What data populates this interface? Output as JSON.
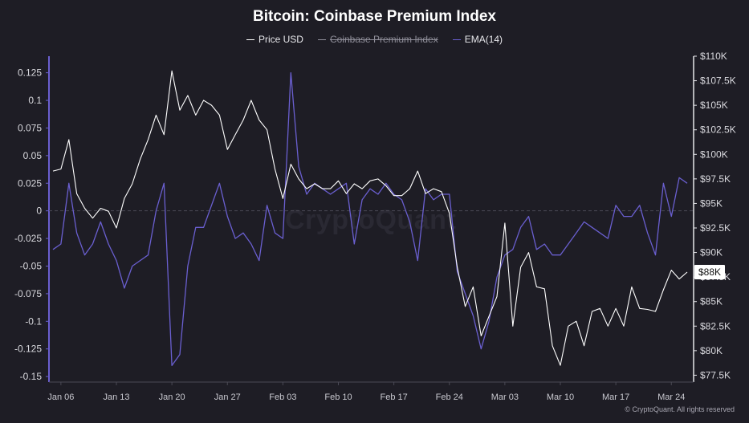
{
  "chart_data": {
    "type": "line",
    "title": "Bitcoin: Coinbase Premium Index",
    "legend": [
      {
        "name": "Price USD",
        "color": "#ffffff",
        "hidden": false
      },
      {
        "name": "Coinbase Premium Index",
        "color": "#8f8e99",
        "hidden": true
      },
      {
        "name": "EMA(14)",
        "color": "#6a5fd0",
        "hidden": false
      }
    ],
    "x_ticks": [
      "Jan 06",
      "Jan 13",
      "Jan 20",
      "Jan 27",
      "Feb 03",
      "Feb 10",
      "Feb 17",
      "Feb 24",
      "Mar 03",
      "Mar 10",
      "Mar 17",
      "Mar 24"
    ],
    "x_range": [
      "Jan 05",
      "Mar 26"
    ],
    "y_left": {
      "ticks": [
        "0.125",
        "0.1",
        "0.075",
        "0.05",
        "0.025",
        "0",
        "-0.025",
        "-0.05",
        "-0.075",
        "-0.1",
        "-0.125",
        "-0.15"
      ],
      "range": [
        -0.155,
        0.14
      ]
    },
    "y_right": {
      "ticks": [
        "$110K",
        "$107.5K",
        "$105K",
        "$102.5K",
        "$100K",
        "$97.5K",
        "$95K",
        "$92.5K",
        "$90K",
        "$87.5K",
        "$85K",
        "$82.5K",
        "$80K",
        "$77.5K"
      ],
      "range": [
        76800,
        110000
      ]
    },
    "price_label": "$88K",
    "series": [
      {
        "name": "Price USD",
        "axis": "right",
        "points": [
          [
            "Jan 05",
            98300
          ],
          [
            "Jan 06",
            98500
          ],
          [
            "Jan 07",
            101500
          ],
          [
            "Jan 08",
            96000
          ],
          [
            "Jan 09",
            94500
          ],
          [
            "Jan 10",
            93500
          ],
          [
            "Jan 11",
            94500
          ],
          [
            "Jan 12",
            94200
          ],
          [
            "Jan 13",
            92500
          ],
          [
            "Jan 14",
            95500
          ],
          [
            "Jan 15",
            97000
          ],
          [
            "Jan 16",
            99500
          ],
          [
            "Jan 17",
            101500
          ],
          [
            "Jan 18",
            104000
          ],
          [
            "Jan 19",
            102000
          ],
          [
            "Jan 20",
            108500
          ],
          [
            "Jan 21",
            104500
          ],
          [
            "Jan 22",
            106000
          ],
          [
            "Jan 23",
            104000
          ],
          [
            "Jan 24",
            105500
          ],
          [
            "Jan 25",
            105000
          ],
          [
            "Jan 26",
            104000
          ],
          [
            "Jan 27",
            100500
          ],
          [
            "Jan 28",
            102000
          ],
          [
            "Jan 29",
            103500
          ],
          [
            "Jan 30",
            105500
          ],
          [
            "Jan 31",
            103500
          ],
          [
            "Feb 01",
            102500
          ],
          [
            "Feb 02",
            98500
          ],
          [
            "Feb 03",
            95500
          ],
          [
            "Feb 04",
            99000
          ],
          [
            "Feb 05",
            97500
          ],
          [
            "Feb 06",
            96500
          ],
          [
            "Feb 07",
            97000
          ],
          [
            "Feb 08",
            96500
          ],
          [
            "Feb 09",
            96500
          ],
          [
            "Feb 10",
            97300
          ],
          [
            "Feb 11",
            96000
          ],
          [
            "Feb 12",
            97000
          ],
          [
            "Feb 13",
            96500
          ],
          [
            "Feb 14",
            97300
          ],
          [
            "Feb 15",
            97500
          ],
          [
            "Feb 16",
            96800
          ],
          [
            "Feb 17",
            95800
          ],
          [
            "Feb 18",
            95800
          ],
          [
            "Feb 19",
            96500
          ],
          [
            "Feb 20",
            98300
          ],
          [
            "Feb 21",
            96000
          ],
          [
            "Feb 22",
            96500
          ],
          [
            "Feb 23",
            96200
          ],
          [
            "Feb 24",
            94000
          ],
          [
            "Feb 25",
            88500
          ],
          [
            "Feb 26",
            84500
          ],
          [
            "Feb 27",
            86500
          ],
          [
            "Feb 28",
            81500
          ],
          [
            "Mar 01",
            83500
          ],
          [
            "Mar 02",
            85500
          ],
          [
            "Mar 03",
            93000
          ],
          [
            "Mar 04",
            82500
          ],
          [
            "Mar 05",
            88500
          ],
          [
            "Mar 06",
            90000
          ],
          [
            "Mar 07",
            86500
          ],
          [
            "Mar 08",
            86300
          ],
          [
            "Mar 09",
            80500
          ],
          [
            "Mar 10",
            78500
          ],
          [
            "Mar 11",
            82500
          ],
          [
            "Mar 12",
            83000
          ],
          [
            "Mar 13",
            80500
          ],
          [
            "Mar 14",
            84000
          ],
          [
            "Mar 15",
            84300
          ],
          [
            "Mar 16",
            82500
          ],
          [
            "Mar 17",
            84300
          ],
          [
            "Mar 18",
            82500
          ],
          [
            "Mar 19",
            86500
          ],
          [
            "Mar 20",
            84300
          ],
          [
            "Mar 21",
            84200
          ],
          [
            "Mar 22",
            84000
          ],
          [
            "Mar 23",
            86200
          ],
          [
            "Mar 24",
            88200
          ],
          [
            "Mar 25",
            87300
          ],
          [
            "Mar 26",
            88000
          ]
        ]
      },
      {
        "name": "EMA(14)",
        "axis": "left",
        "points": [
          [
            "Jan 05",
            -0.035
          ],
          [
            "Jan 06",
            -0.03
          ],
          [
            "Jan 07",
            0.025
          ],
          [
            "Jan 08",
            -0.02
          ],
          [
            "Jan 09",
            -0.04
          ],
          [
            "Jan 10",
            -0.03
          ],
          [
            "Jan 11",
            -0.01
          ],
          [
            "Jan 12",
            -0.03
          ],
          [
            "Jan 13",
            -0.045
          ],
          [
            "Jan 14",
            -0.07
          ],
          [
            "Jan 15",
            -0.05
          ],
          [
            "Jan 16",
            -0.045
          ],
          [
            "Jan 17",
            -0.04
          ],
          [
            "Jan 18",
            0.0
          ],
          [
            "Jan 19",
            0.025
          ],
          [
            "Jan 20",
            -0.14
          ],
          [
            "Jan 21",
            -0.13
          ],
          [
            "Jan 22",
            -0.05
          ],
          [
            "Jan 23",
            -0.015
          ],
          [
            "Jan 24",
            -0.015
          ],
          [
            "Jan 25",
            0.005
          ],
          [
            "Jan 26",
            0.025
          ],
          [
            "Jan 27",
            -0.005
          ],
          [
            "Jan 28",
            -0.025
          ],
          [
            "Jan 29",
            -0.02
          ],
          [
            "Jan 30",
            -0.03
          ],
          [
            "Jan 31",
            -0.045
          ],
          [
            "Feb 01",
            0.005
          ],
          [
            "Feb 02",
            -0.02
          ],
          [
            "Feb 03",
            -0.025
          ],
          [
            "Feb 04",
            0.125
          ],
          [
            "Feb 05",
            0.04
          ],
          [
            "Feb 06",
            0.015
          ],
          [
            "Feb 07",
            0.025
          ],
          [
            "Feb 08",
            0.02
          ],
          [
            "Feb 09",
            0.015
          ],
          [
            "Feb 10",
            0.02
          ],
          [
            "Feb 11",
            0.025
          ],
          [
            "Feb 12",
            -0.03
          ],
          [
            "Feb 13",
            0.01
          ],
          [
            "Feb 14",
            0.02
          ],
          [
            "Feb 15",
            0.015
          ],
          [
            "Feb 16",
            0.025
          ],
          [
            "Feb 17",
            0.015
          ],
          [
            "Feb 18",
            0.01
          ],
          [
            "Feb 19",
            -0.01
          ],
          [
            "Feb 20",
            -0.045
          ],
          [
            "Feb 21",
            0.02
          ],
          [
            "Feb 22",
            0.01
          ],
          [
            "Feb 23",
            0.015
          ],
          [
            "Feb 24",
            0.015
          ],
          [
            "Feb 25",
            -0.055
          ],
          [
            "Feb 26",
            -0.075
          ],
          [
            "Feb 27",
            -0.095
          ],
          [
            "Feb 28",
            -0.125
          ],
          [
            "Mar 01",
            -0.1
          ],
          [
            "Mar 02",
            -0.06
          ],
          [
            "Mar 03",
            -0.04
          ],
          [
            "Mar 04",
            -0.035
          ],
          [
            "Mar 05",
            -0.015
          ],
          [
            "Mar 06",
            -0.005
          ],
          [
            "Mar 07",
            -0.035
          ],
          [
            "Mar 08",
            -0.03
          ],
          [
            "Mar 09",
            -0.04
          ],
          [
            "Mar 10",
            -0.04
          ],
          [
            "Mar 11",
            -0.03
          ],
          [
            "Mar 12",
            -0.02
          ],
          [
            "Mar 13",
            -0.01
          ],
          [
            "Mar 14",
            -0.015
          ],
          [
            "Mar 15",
            -0.02
          ],
          [
            "Mar 16",
            -0.025
          ],
          [
            "Mar 17",
            0.005
          ],
          [
            "Mar 18",
            -0.005
          ],
          [
            "Mar 19",
            -0.005
          ],
          [
            "Mar 20",
            0.005
          ],
          [
            "Mar 21",
            -0.02
          ],
          [
            "Mar 22",
            -0.04
          ],
          [
            "Mar 23",
            0.025
          ],
          [
            "Mar 24",
            -0.005
          ],
          [
            "Mar 25",
            0.03
          ],
          [
            "Mar 26",
            0.025
          ]
        ]
      }
    ]
  },
  "watermark": "CryptoQuant",
  "copyright": "© CryptoQuant. All rights reserved"
}
